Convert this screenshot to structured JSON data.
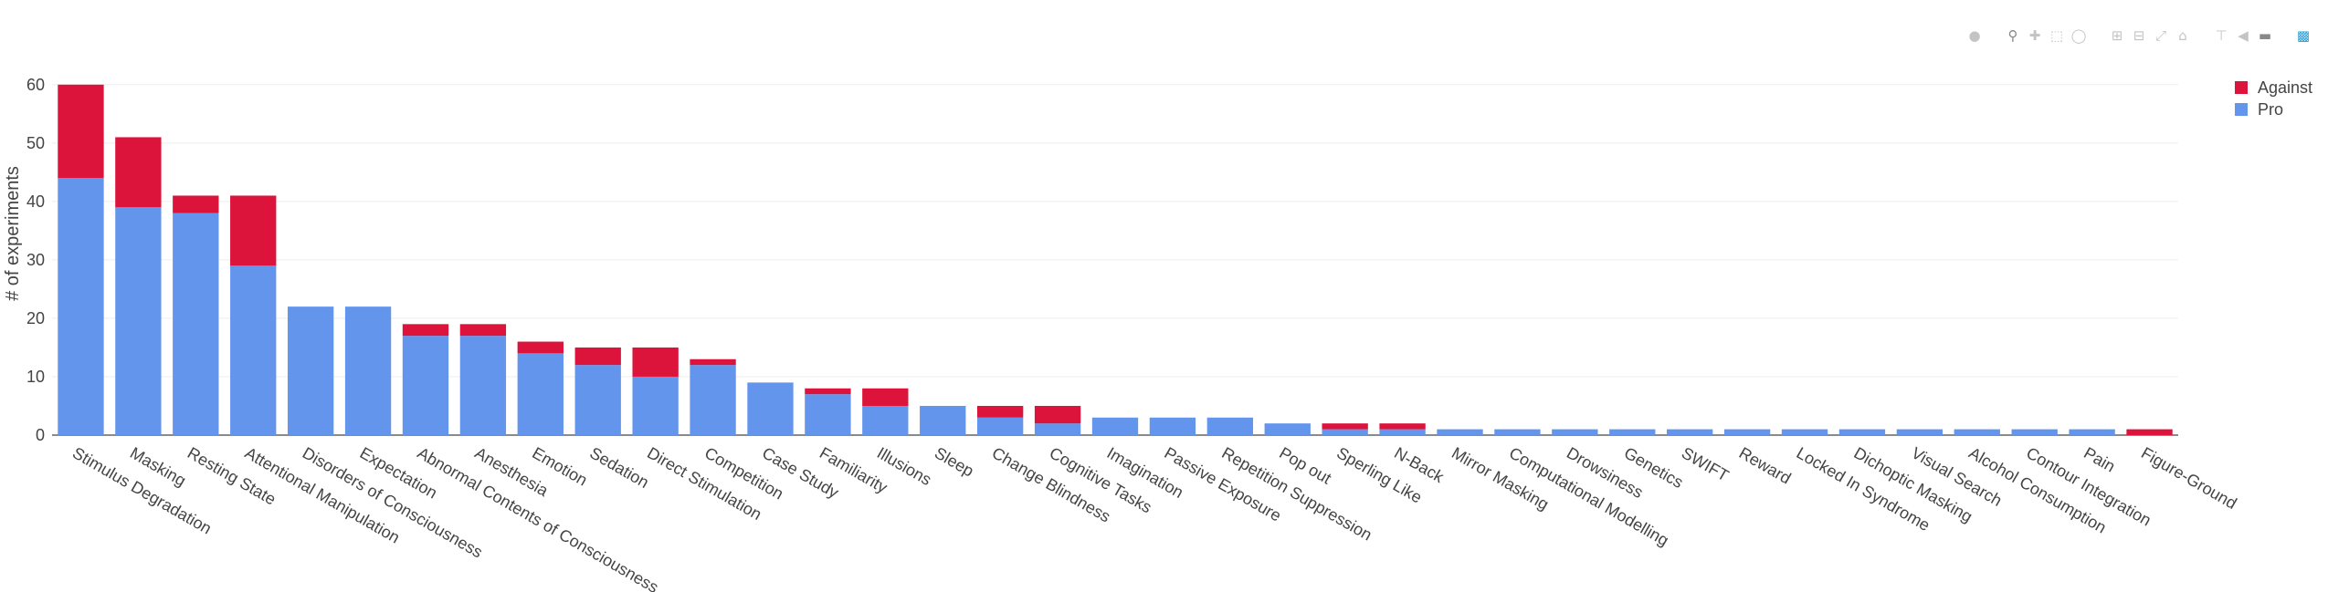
{
  "chart_data": {
    "type": "bar",
    "barmode": "stack",
    "title": "",
    "xlabel": "",
    "ylabel": "# of experiments",
    "ylim": [
      0,
      62
    ],
    "yticks": [
      0,
      10,
      20,
      30,
      40,
      50,
      60
    ],
    "grid": true,
    "legend_position": "top-right",
    "categories": [
      "Stimulus Degradation",
      "Masking",
      "Resting State",
      "Attentional Manipulation",
      "Disorders of Consciousness",
      "Expectation",
      "Abnormal Contents of Consciousness",
      "Anesthesia",
      "Emotion",
      "Sedation",
      "Direct Stimulation",
      "Competition",
      "Case Study",
      "Familiarity",
      "Illusions",
      "Sleep",
      "Change Blindness",
      "Cognitive Tasks",
      "Imagination",
      "Passive Exposure",
      "Repetition Suppression",
      "Pop out",
      "Sperling Like",
      "N-Back",
      "Mirror Masking",
      "Computational Modelling",
      "Drowsiness",
      "Genetics",
      "SWIFT",
      "Reward",
      "Locked In Syndrome",
      "Dichoptic Masking",
      "Visual Search",
      "Alcohol Consumption",
      "Contour Integration",
      "Pain",
      "Figure-Ground"
    ],
    "series": [
      {
        "name": "Pro",
        "color": "#6495ed",
        "values": [
          44,
          39,
          38,
          29,
          22,
          22,
          17,
          17,
          14,
          12,
          10,
          12,
          9,
          7,
          5,
          5,
          3,
          2,
          3,
          3,
          3,
          2,
          1,
          1,
          1,
          1,
          1,
          1,
          1,
          1,
          1,
          1,
          1,
          1,
          1,
          1,
          0
        ]
      },
      {
        "name": "Against",
        "color": "#dc143c",
        "values": [
          16,
          12,
          3,
          12,
          0,
          0,
          2,
          2,
          2,
          3,
          5,
          1,
          0,
          1,
          3,
          0,
          2,
          3,
          0,
          0,
          0,
          0,
          1,
          1,
          0,
          0,
          0,
          0,
          0,
          0,
          0,
          0,
          0,
          0,
          0,
          0,
          1
        ]
      }
    ]
  },
  "modebar": {
    "icons": [
      "camera-icon",
      "zoom-icon",
      "pan-icon",
      "box-select-icon",
      "lasso-select-icon",
      "zoom-in-icon",
      "zoom-out-icon",
      "autoscale-icon",
      "reset-axes-icon",
      "spike-lines-icon",
      "hover-closest-icon",
      "hover-compare-icon",
      "plotly-logo-icon"
    ]
  }
}
